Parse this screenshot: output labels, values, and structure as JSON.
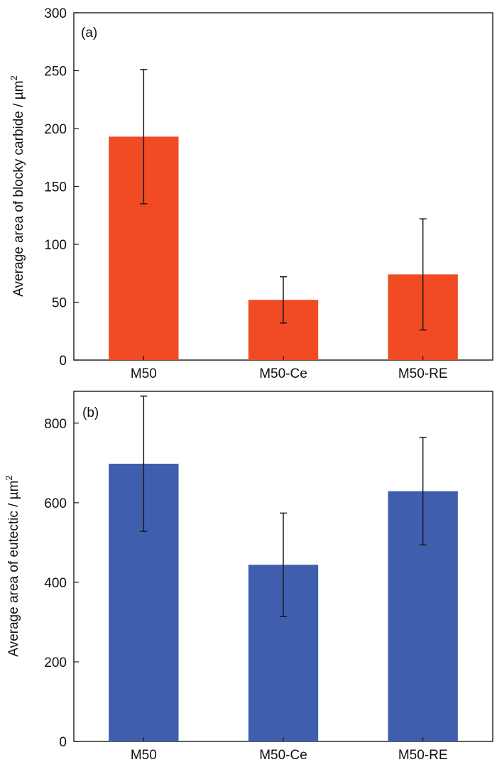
{
  "chart_data": [
    {
      "type": "bar",
      "panel_label": "(a)",
      "categories": [
        "M50",
        "M50-Ce",
        "M50-RE"
      ],
      "values": [
        193,
        52,
        74
      ],
      "errors": [
        58,
        20,
        48
      ],
      "ylabel": "Average area of blocky carbide / µm",
      "ylabel_sup": "2",
      "ylim": [
        0,
        300
      ],
      "yticks": [
        0,
        50,
        100,
        150,
        200,
        250,
        300
      ],
      "bar_color": "#f04b23",
      "grid": false
    },
    {
      "type": "bar",
      "panel_label": "(b)",
      "categories": [
        "M50",
        "M50-Ce",
        "M50-RE"
      ],
      "values": [
        698,
        444,
        629
      ],
      "errors": [
        170,
        130,
        135
      ],
      "ylabel": "Average area of eutectic / µm",
      "ylabel_sup": "2",
      "ylim": [
        0,
        880
      ],
      "yticks": [
        0,
        200,
        400,
        600,
        800
      ],
      "bar_color": "#3f5fae",
      "grid": false
    }
  ]
}
